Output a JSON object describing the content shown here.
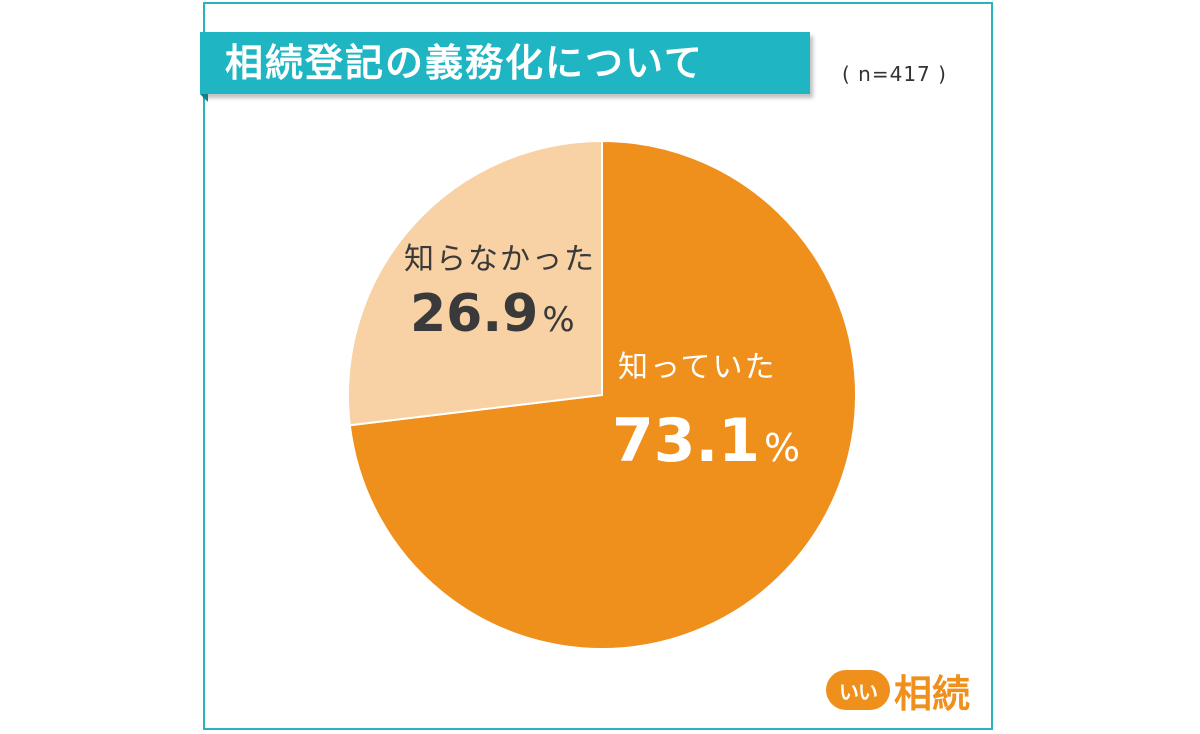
{
  "title": "相続登記の義務化について",
  "sample_size": "( n=417 )",
  "chart_data": {
    "type": "pie",
    "title": "相続登記の義務化について",
    "n": 417,
    "slices": [
      {
        "label": "知っていた",
        "value": 73.1,
        "display_value": "73.1",
        "unit": "%",
        "color": "#ef8f1c"
      },
      {
        "label": "知らなかった",
        "value": 26.9,
        "display_value": "26.9",
        "unit": "%",
        "color": "#f8d1a4"
      }
    ]
  },
  "colors": {
    "accent": "#20b5c2",
    "primary_slice": "#ef8f1c",
    "secondary_slice": "#f8d1a4"
  },
  "logo": {
    "badge_text": "いい",
    "word": "相続"
  }
}
